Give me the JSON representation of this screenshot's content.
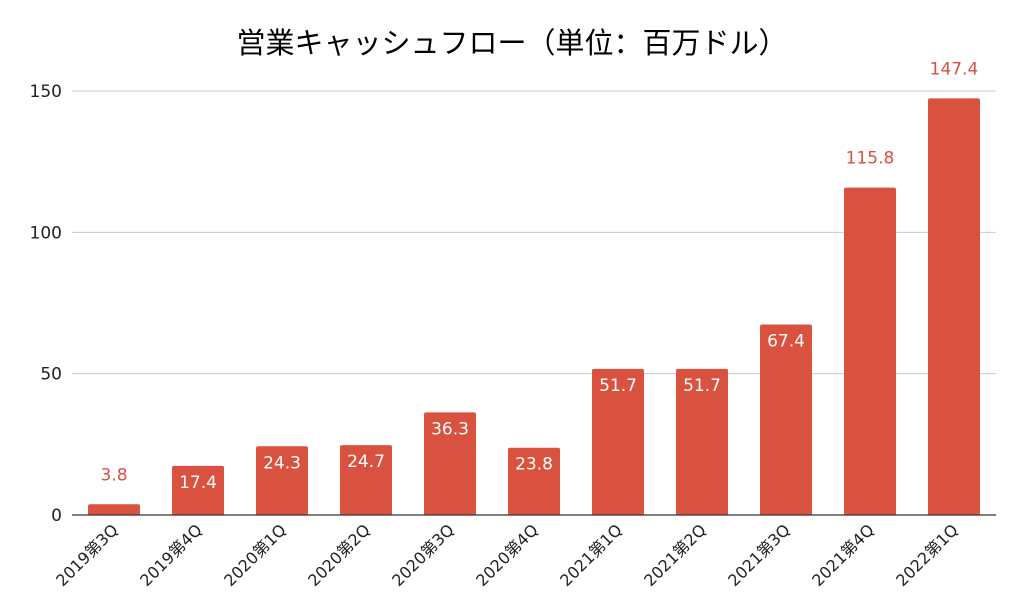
{
  "chart_data": {
    "type": "bar",
    "title": "営業キャッシュフロー（単位：百万ドル）",
    "categories": [
      "2019第3Q",
      "2019第4Q",
      "2020第1Q",
      "2020第2Q",
      "2020第3Q",
      "2020第4Q",
      "2021第1Q",
      "2021第2Q",
      "2021第3Q",
      "2021第4Q",
      "2022第1Q"
    ],
    "values": [
      3.8,
      17.4,
      24.3,
      24.7,
      36.3,
      23.8,
      51.7,
      51.7,
      67.4,
      115.8,
      147.4
    ],
    "data_labels": [
      "3.8",
      "17.4",
      "24.3",
      "24.7",
      "36.3",
      "23.8",
      "51.7",
      "51.7",
      "67.4",
      "115.8",
      "147.4"
    ],
    "ylim": [
      0,
      150
    ],
    "yticks": [
      0,
      50,
      100,
      150
    ],
    "ytick_labels": [
      "0",
      "50",
      "100",
      "150"
    ],
    "xlabel": "",
    "ylabel": "",
    "grid": true,
    "legend": "none",
    "bar_color": "#d9513f",
    "label_inside_color": "#ffffff",
    "label_outside_color": "#d9513f"
  }
}
